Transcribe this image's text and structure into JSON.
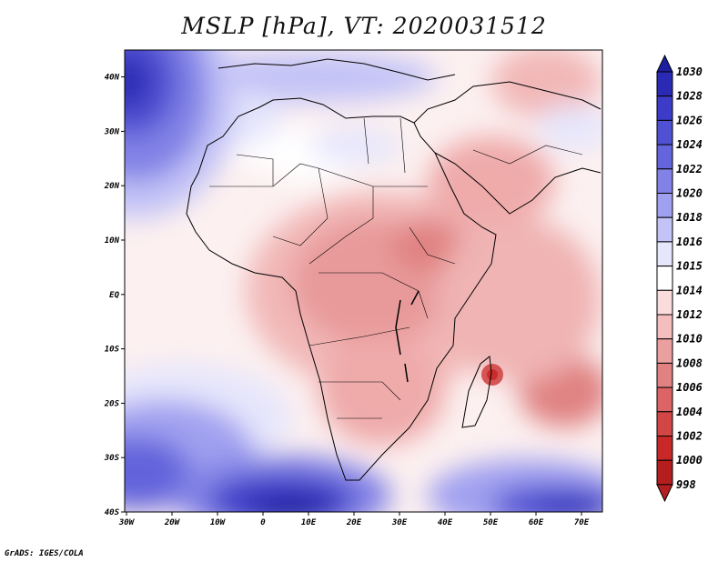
{
  "title": "MSLP [hPa], VT: 2020031512",
  "footer": "GrADS: IGES/COLA",
  "map": {
    "lon_range": [
      -30,
      75
    ],
    "lat_range": [
      -40,
      45
    ],
    "x_ticks": [
      "30W",
      "20W",
      "10W",
      "0",
      "10E",
      "20E",
      "30E",
      "40E",
      "50E",
      "60E",
      "70E"
    ],
    "y_ticks": [
      "40S",
      "30S",
      "20S",
      "10S",
      "EQ",
      "10N",
      "20N",
      "30N",
      "40N"
    ]
  },
  "colorbar": {
    "levels": [
      "1030",
      "1028",
      "1026",
      "1024",
      "1022",
      "1020",
      "1018",
      "1016",
      "1015",
      "1014",
      "1012",
      "1010",
      "1008",
      "1006",
      "1004",
      "1002",
      "1000",
      "998"
    ],
    "colors": [
      "#1e1ea0",
      "#2a2ab4",
      "#3c3cc8",
      "#5050d2",
      "#6464dc",
      "#8282e6",
      "#a0a0f0",
      "#c3c3f7",
      "#e6e6fc",
      "#ffffff",
      "#fadcdc",
      "#f5bebe",
      "#eba0a0",
      "#e08282",
      "#dc6464",
      "#d24646",
      "#c82828",
      "#b41e1e"
    ]
  },
  "features": {
    "lows": [
      {
        "name": "madagascar-low",
        "lon": 50.5,
        "lat": -15.5,
        "hpa": 1004
      },
      {
        "name": "indian-ocean-low",
        "lon": 67,
        "lat": -19,
        "hpa": 1007
      }
    ],
    "highs": [
      {
        "name": "azores-high",
        "lon": -30,
        "lat": 39,
        "hpa": 1030
      },
      {
        "name": "south-atlantic-high",
        "lon": 8,
        "lat": -39,
        "hpa": 1030
      },
      {
        "name": "south-indian-high",
        "lon": 68,
        "lat": -39,
        "hpa": 1028
      },
      {
        "name": "west-south-atlantic-high",
        "lon": -30,
        "lat": -30,
        "hpa": 1022
      }
    ]
  }
}
